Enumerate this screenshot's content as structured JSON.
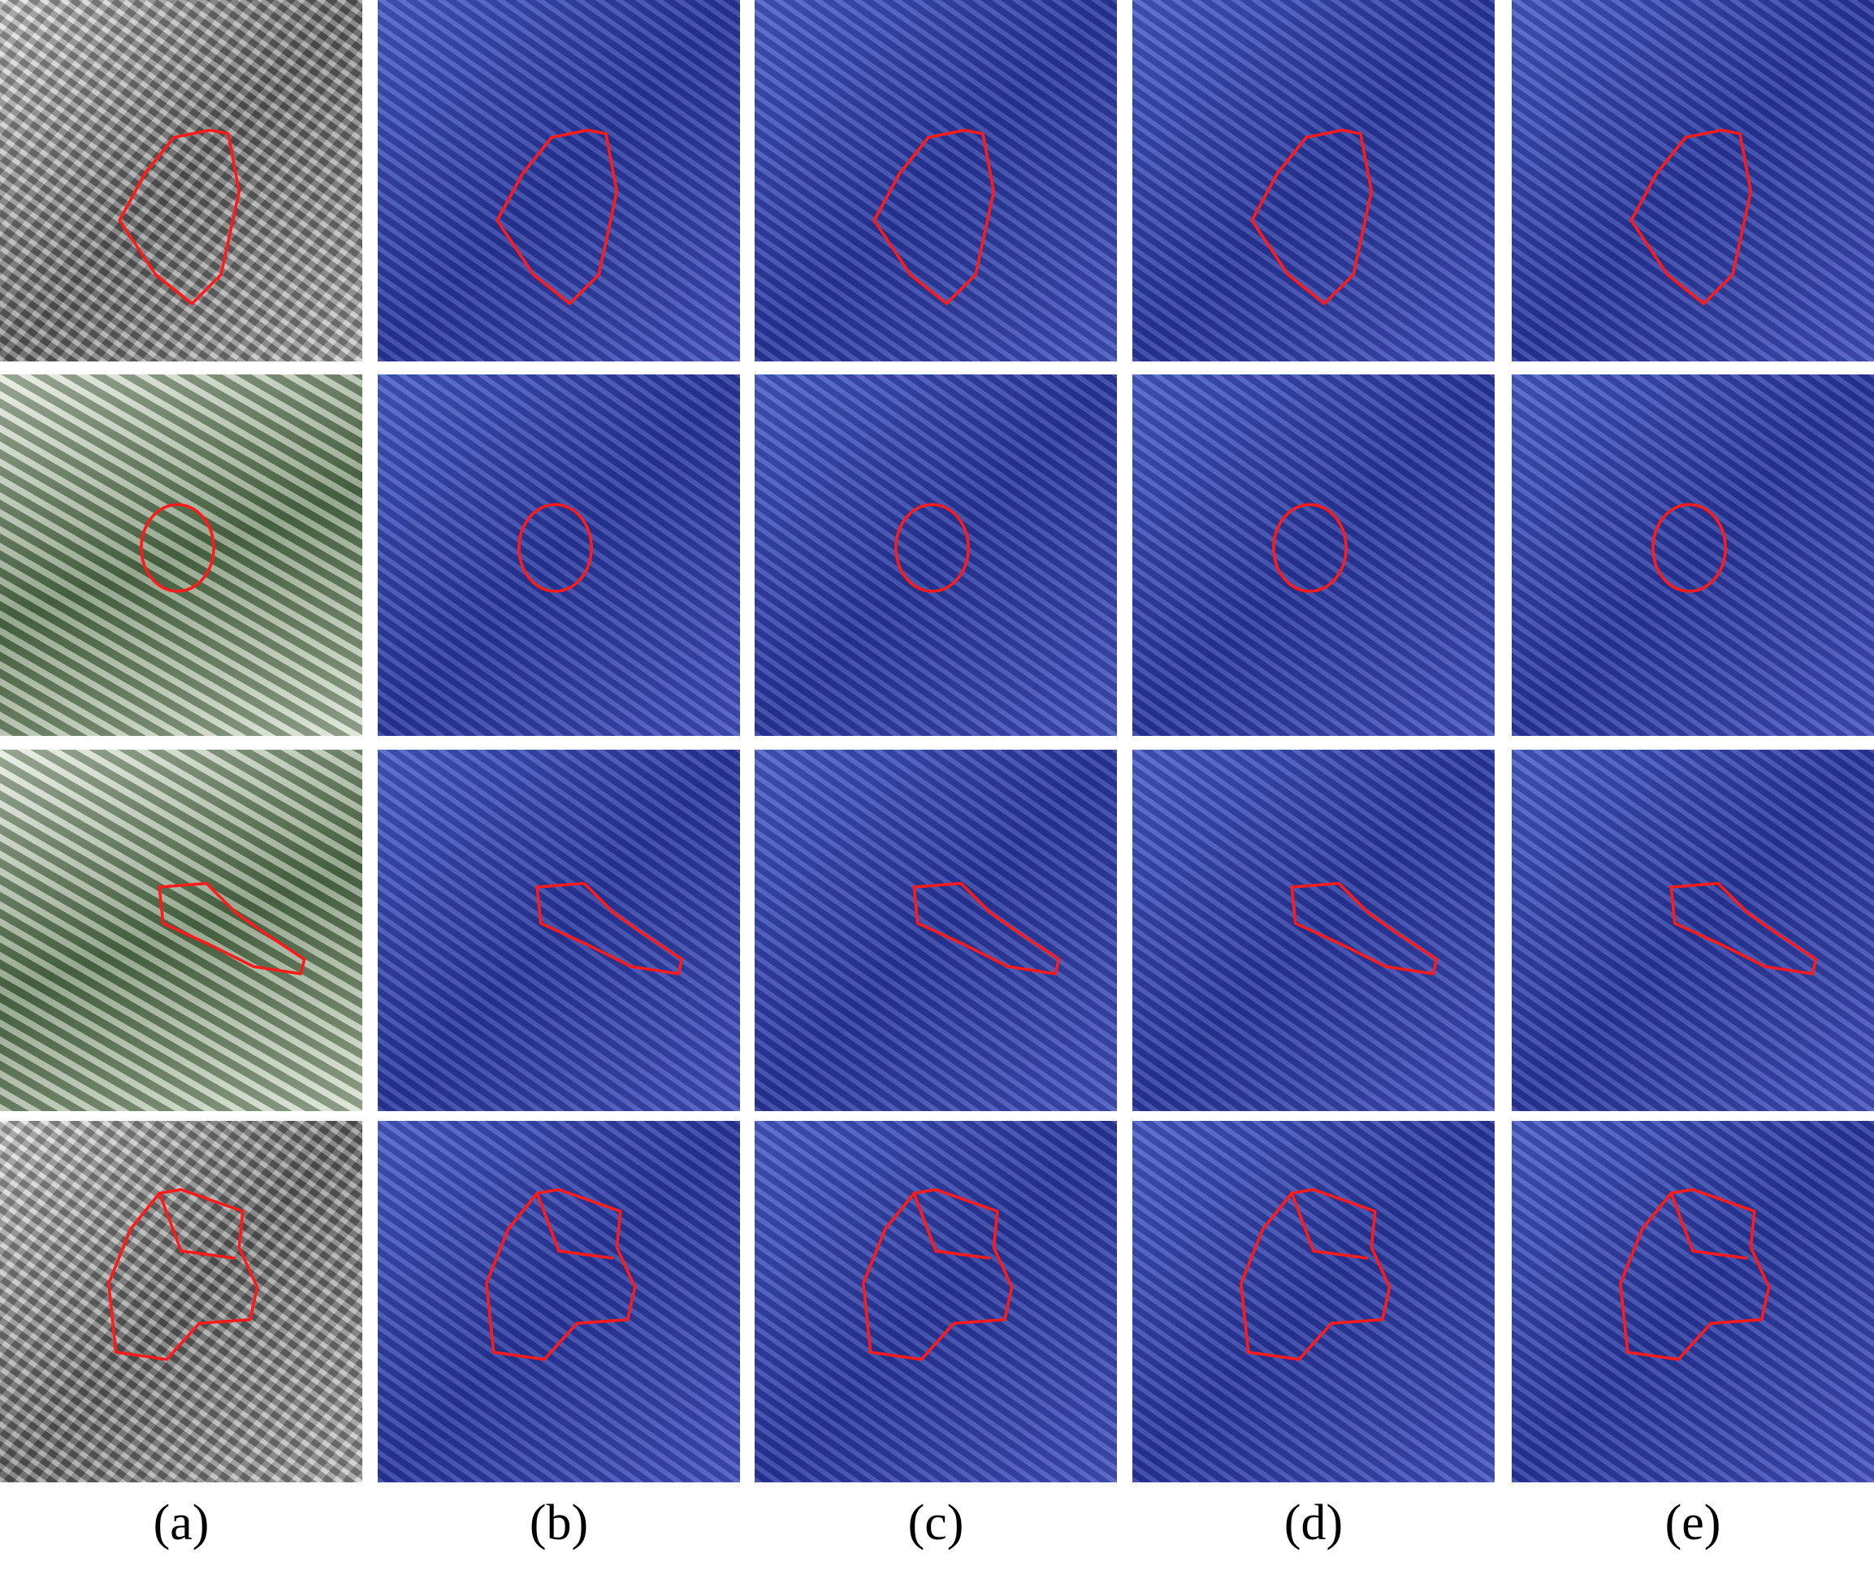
{
  "figure": {
    "column_labels": [
      "(a)",
      "(b)",
      "(c)",
      "(d)",
      "(e)"
    ],
    "rows": 4,
    "colors": {
      "outline": "#ff1a1a",
      "heat_low": "#2b3aa0",
      "heat_high": "#d02010"
    }
  }
}
